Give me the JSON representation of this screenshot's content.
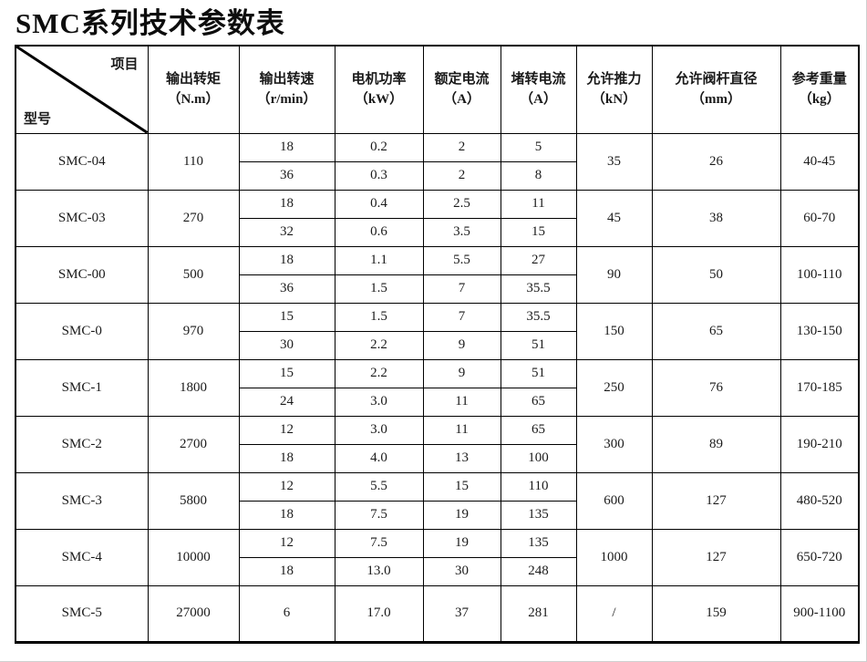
{
  "title": "SMC系列技术参数表",
  "table": {
    "corner": {
      "top_right": "项目",
      "bottom_left": "型号"
    },
    "columns": [
      {
        "label": "输出转矩",
        "unit": "（N.m）"
      },
      {
        "label": "输出转速",
        "unit": "（r/min）"
      },
      {
        "label": "电机功率",
        "unit": "（kW）"
      },
      {
        "label": "额定电流",
        "unit": "（A）"
      },
      {
        "label": "堵转电流",
        "unit": "（A）"
      },
      {
        "label": "允许推力",
        "unit": "（kN）"
      },
      {
        "label": "允许阀杆直径",
        "unit": "（mm）"
      },
      {
        "label": "参考重量",
        "unit": "（kg）"
      }
    ],
    "rows": [
      {
        "model": "SMC-04",
        "torque": "110",
        "sub": [
          {
            "speed": "18",
            "power": "0.2",
            "rated": "2",
            "stall": "5"
          },
          {
            "speed": "36",
            "power": "0.3",
            "rated": "2",
            "stall": "8"
          }
        ],
        "thrust": "35",
        "stem": "26",
        "weight": "40-45"
      },
      {
        "model": "SMC-03",
        "torque": "270",
        "sub": [
          {
            "speed": "18",
            "power": "0.4",
            "rated": "2.5",
            "stall": "11"
          },
          {
            "speed": "32",
            "power": "0.6",
            "rated": "3.5",
            "stall": "15"
          }
        ],
        "thrust": "45",
        "stem": "38",
        "weight": "60-70"
      },
      {
        "model": "SMC-00",
        "torque": "500",
        "sub": [
          {
            "speed": "18",
            "power": "1.1",
            "rated": "5.5",
            "stall": "27"
          },
          {
            "speed": "36",
            "power": "1.5",
            "rated": "7",
            "stall": "35.5"
          }
        ],
        "thrust": "90",
        "stem": "50",
        "weight": "100-110"
      },
      {
        "model": "SMC-0",
        "torque": "970",
        "sub": [
          {
            "speed": "15",
            "power": "1.5",
            "rated": "7",
            "stall": "35.5"
          },
          {
            "speed": "30",
            "power": "2.2",
            "rated": "9",
            "stall": "51"
          }
        ],
        "thrust": "150",
        "stem": "65",
        "weight": "130-150"
      },
      {
        "model": "SMC-1",
        "torque": "1800",
        "sub": [
          {
            "speed": "15",
            "power": "2.2",
            "rated": "9",
            "stall": "51"
          },
          {
            "speed": "24",
            "power": "3.0",
            "rated": "11",
            "stall": "65"
          }
        ],
        "thrust": "250",
        "stem": "76",
        "weight": "170-185"
      },
      {
        "model": "SMC-2",
        "torque": "2700",
        "sub": [
          {
            "speed": "12",
            "power": "3.0",
            "rated": "11",
            "stall": "65"
          },
          {
            "speed": "18",
            "power": "4.0",
            "rated": "13",
            "stall": "100"
          }
        ],
        "thrust": "300",
        "stem": "89",
        "weight": "190-210"
      },
      {
        "model": "SMC-3",
        "torque": "5800",
        "sub": [
          {
            "speed": "12",
            "power": "5.5",
            "rated": "15",
            "stall": "110"
          },
          {
            "speed": "18",
            "power": "7.5",
            "rated": "19",
            "stall": "135"
          }
        ],
        "thrust": "600",
        "stem": "127",
        "weight": "480-520"
      },
      {
        "model": "SMC-4",
        "torque": "10000",
        "sub": [
          {
            "speed": "12",
            "power": "7.5",
            "rated": "19",
            "stall": "135"
          },
          {
            "speed": "18",
            "power": "13.0",
            "rated": "30",
            "stall": "248"
          }
        ],
        "thrust": "1000",
        "stem": "127",
        "weight": "650-720"
      },
      {
        "model": "SMC-5",
        "torque": "27000",
        "sub": [
          {
            "speed": "6",
            "power": "17.0",
            "rated": "37",
            "stall": "281"
          }
        ],
        "thrust": "/",
        "stem": "159",
        "weight": "900-1100"
      }
    ]
  }
}
